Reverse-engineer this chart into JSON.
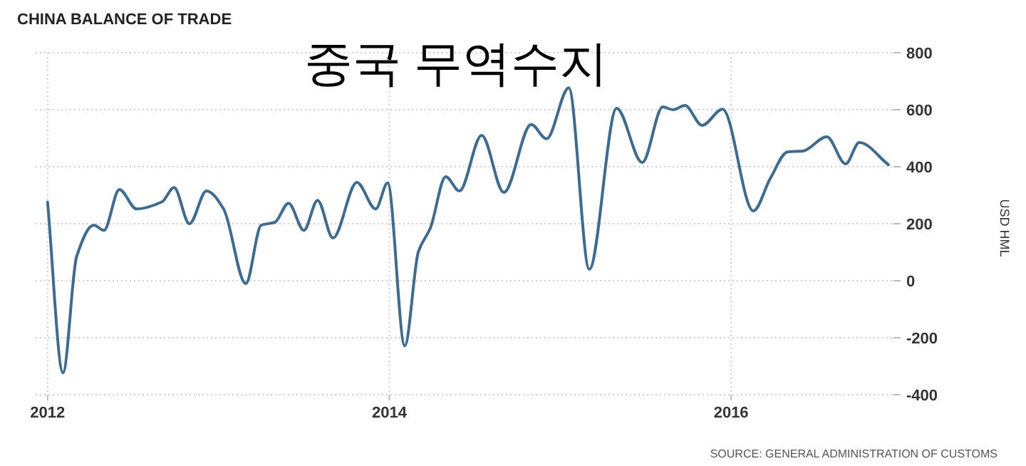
{
  "chart_data": {
    "type": "line",
    "title": "CHINA BALANCE OF TRADE",
    "subtitle": "중국 무역수지",
    "ylabel": "USD HML",
    "annotations": [
      "SOURCE: GENERAL ADMINISTRATION OF CUSTOMS"
    ],
    "x": [
      2012.0,
      2012.09,
      2012.17,
      2012.27,
      2012.33,
      2012.42,
      2012.52,
      2012.67,
      2012.74,
      2012.83,
      2012.93,
      2013.03,
      2013.16,
      2013.25,
      2013.33,
      2013.41,
      2013.5,
      2013.58,
      2013.67,
      2013.81,
      2013.92,
      2013.99,
      2014.09,
      2014.17,
      2014.24,
      2014.33,
      2014.41,
      2014.54,
      2014.67,
      2014.83,
      2014.92,
      2015.05,
      2015.17,
      2015.33,
      2015.48,
      2015.6,
      2015.66,
      2015.73,
      2015.83,
      2015.95,
      2016.13,
      2016.23,
      2016.33,
      2016.42,
      2016.56,
      2016.67,
      2016.75,
      2016.92
    ],
    "series": [
      {
        "color": "#3f6b8e",
        "values": [
          276,
          -323,
          85,
          195,
          177,
          320,
          252,
          277,
          327,
          200,
          315,
          252,
          -10,
          195,
          205,
          272,
          177,
          282,
          150,
          345,
          252,
          343,
          -228,
          102,
          185,
          365,
          315,
          510,
          310,
          548,
          498,
          677,
          40,
          605,
          415,
          610,
          600,
          615,
          545,
          602,
          245,
          360,
          452,
          455,
          505,
          410,
          485,
          407
        ]
      }
    ],
    "xlim": [
      2011.93,
      2016.95
    ],
    "xticks": [
      2012,
      2014,
      2016
    ],
    "ylim": [
      -400,
      800
    ],
    "yticks": [
      -400,
      -200,
      0,
      200,
      400,
      600,
      800
    ],
    "grid": true,
    "marker": "none",
    "line_style": "solid"
  }
}
